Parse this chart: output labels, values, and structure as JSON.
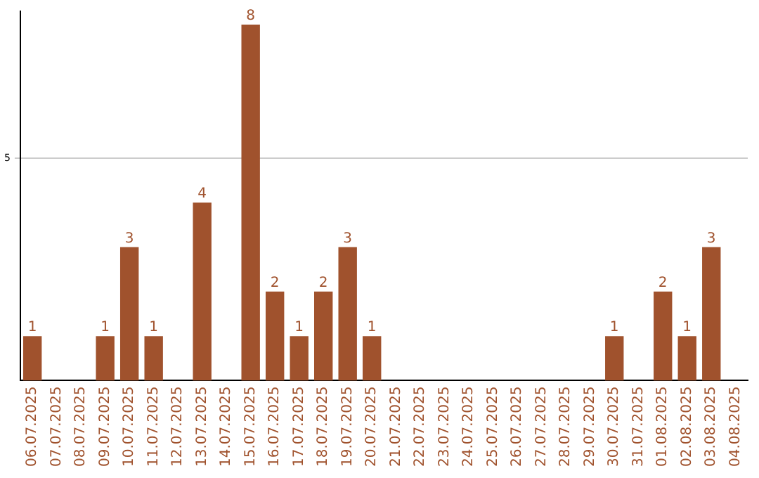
{
  "chart_data": {
    "type": "bar",
    "categories": [
      "06.07.2025",
      "07.07.2025",
      "08.07.2025",
      "09.07.2025",
      "10.07.2025",
      "11.07.2025",
      "12.07.2025",
      "13.07.2025",
      "14.07.2025",
      "15.07.2025",
      "16.07.2025",
      "17.07.2025",
      "18.07.2025",
      "19.07.2025",
      "20.07.2025",
      "21.07.2025",
      "22.07.2025",
      "23.07.2025",
      "24.07.2025",
      "25.07.2025",
      "26.07.2025",
      "27.07.2025",
      "28.07.2025",
      "29.07.2025",
      "30.07.2025",
      "31.07.2025",
      "01.08.2025",
      "02.08.2025",
      "03.08.2025",
      "04.08.2025"
    ],
    "values": [
      1,
      0,
      0,
      1,
      3,
      1,
      0,
      4,
      0,
      8,
      2,
      1,
      2,
      3,
      1,
      0,
      0,
      0,
      0,
      0,
      0,
      0,
      0,
      0,
      1,
      0,
      2,
      1,
      3,
      0
    ],
    "value_labels": [
      "1",
      null,
      null,
      "1",
      "3",
      "1",
      null,
      "4",
      null,
      "8",
      "2",
      "1",
      "2",
      "3",
      "1",
      null,
      null,
      null,
      null,
      null,
      null,
      null,
      null,
      null,
      "1",
      null,
      "2",
      "1",
      "3",
      null
    ],
    "color": "#a0522d",
    "ylim": [
      0,
      8.3
    ],
    "yticks": [
      5
    ],
    "grid": "y",
    "legend": false
  }
}
